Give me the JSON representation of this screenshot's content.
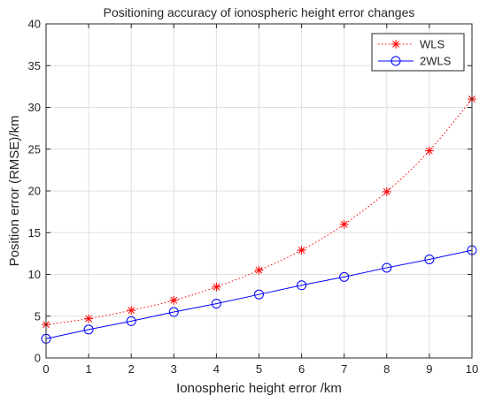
{
  "chart_data": {
    "type": "line",
    "title": "Positioning accuracy of ionospheric height error changes",
    "xlabel": "Ionospheric height error /km",
    "ylabel": "Position error (RMSE)/km",
    "xlim": [
      0,
      10
    ],
    "ylim": [
      0,
      40
    ],
    "x_ticks": [
      "0",
      "1",
      "2",
      "3",
      "4",
      "5",
      "6",
      "7",
      "8",
      "9",
      "10"
    ],
    "y_ticks": [
      "0",
      "5",
      "10",
      "15",
      "20",
      "25",
      "30",
      "35",
      "40"
    ],
    "grid": true,
    "legend_position": "top-right",
    "x": [
      0,
      1,
      2,
      3,
      4,
      5,
      6,
      7,
      8,
      9,
      10
    ],
    "series": [
      {
        "name": "WLS",
        "values": [
          4.0,
          4.7,
          5.7,
          6.9,
          8.5,
          10.5,
          12.9,
          16.0,
          19.9,
          24.8,
          31.0
        ],
        "color": "#ff0000",
        "line_style": "dotted",
        "marker": "asterisk"
      },
      {
        "name": "2WLS",
        "values": [
          2.3,
          3.4,
          4.4,
          5.5,
          6.5,
          7.6,
          8.7,
          9.7,
          10.8,
          11.8,
          12.9
        ],
        "color": "#0000ff",
        "line_style": "solid",
        "marker": "circle"
      }
    ]
  }
}
